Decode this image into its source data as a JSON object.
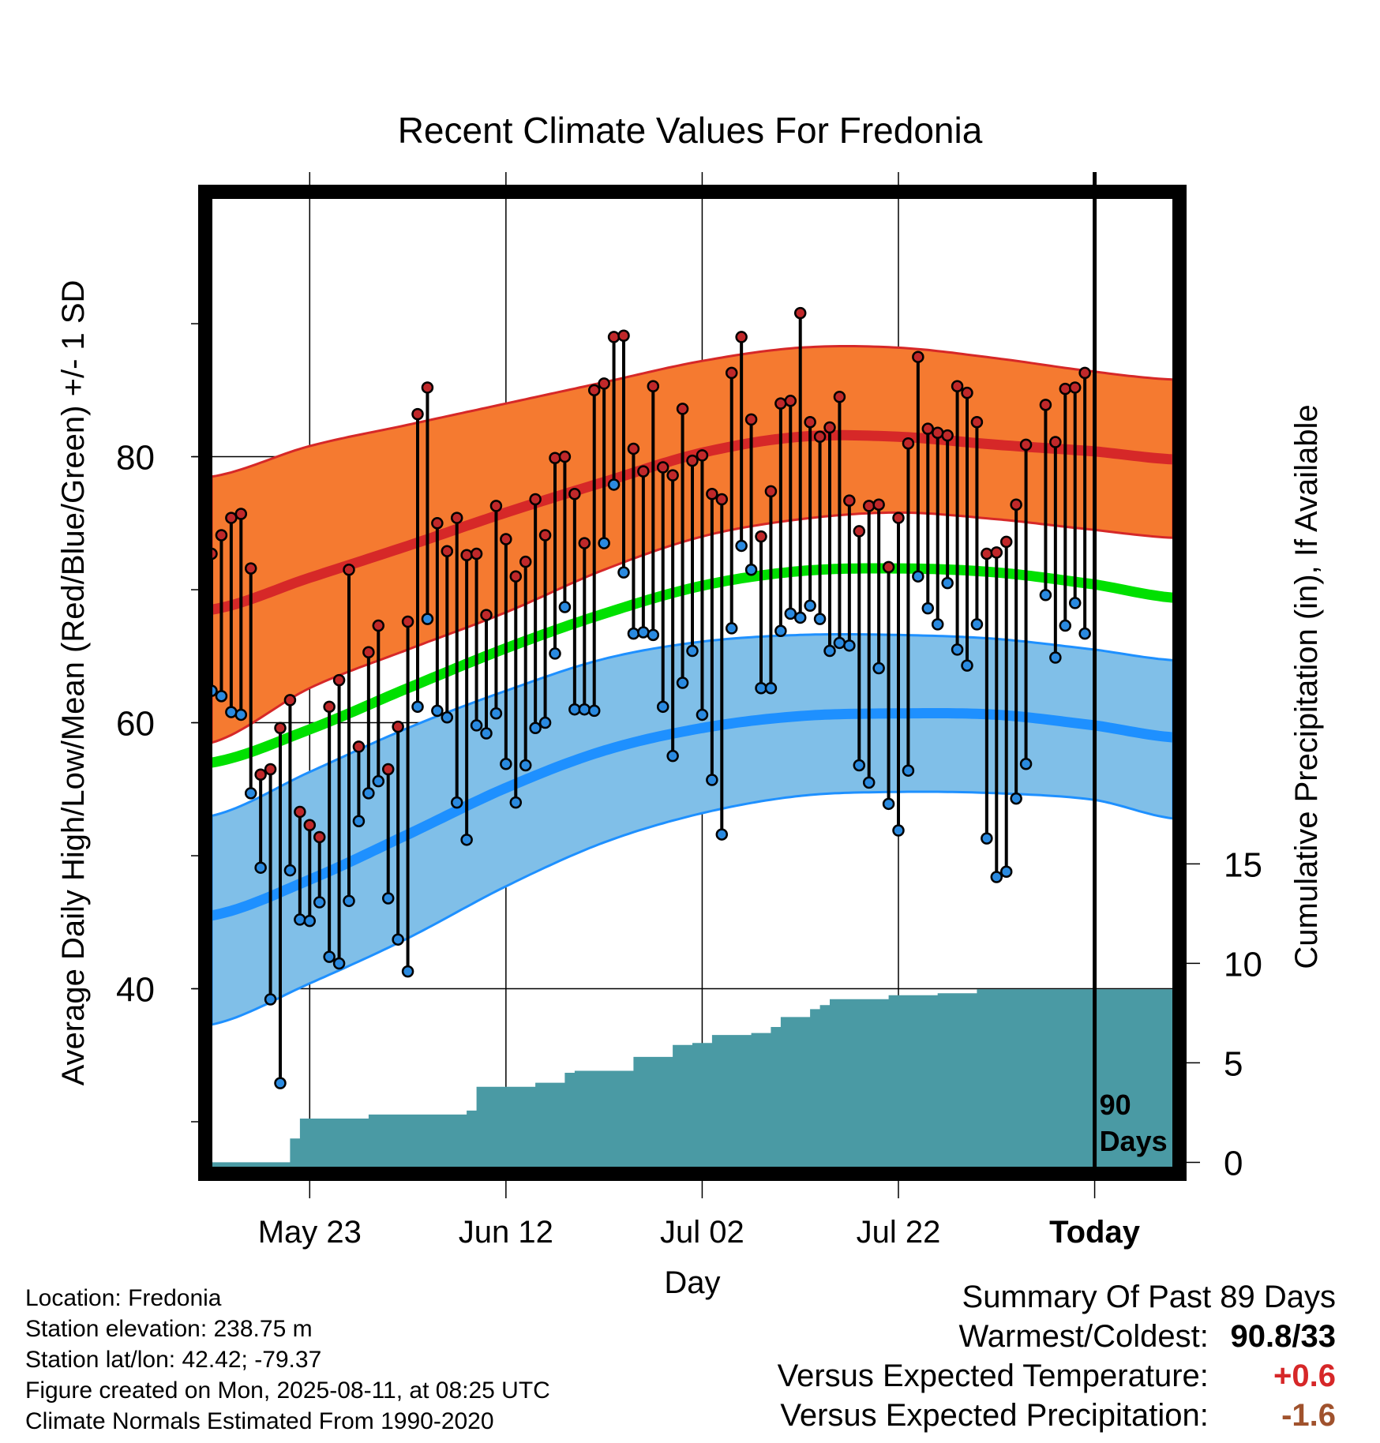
{
  "title": "Recent Climate Values For Fredonia",
  "chart_data": {
    "type": "line",
    "title": "Recent Climate Values For Fredonia",
    "xlabel": "Day",
    "ylabel": "Average Daily High/Low/Mean (Red/Blue/Green) +/- 1 SD",
    "y2label": "Cumulative Precipitation (in), If Available",
    "xlim": [
      "2025-05-13",
      "2025-08-19"
    ],
    "ylim": [
      26.5,
      99.5
    ],
    "y2lim": [
      -0.3,
      48.5
    ],
    "x_ticks": [
      "May 23",
      "Jun 12",
      "Jul 02",
      "Jul 22",
      "Today"
    ],
    "x_tick_dates": [
      "2025-05-23",
      "2025-06-12",
      "2025-07-02",
      "2025-07-22",
      "2025-08-11"
    ],
    "y_ticks": [
      40,
      60,
      80
    ],
    "y2_ticks": [
      0,
      5,
      10,
      15
    ],
    "grid": true,
    "today_marker_label": "90 Days",
    "normal_days": [
      "2025-05-13",
      "2025-05-23",
      "2025-06-02",
      "2025-06-12",
      "2025-06-22",
      "2025-07-02",
      "2025-07-12",
      "2025-07-22",
      "2025-08-01",
      "2025-08-11",
      "2025-08-19"
    ],
    "normal_high": [
      68.5,
      70.9,
      73.3,
      75.8,
      78.1,
      80.3,
      81.5,
      81.5,
      80.9,
      80.4,
      79.8
    ],
    "normal_high_upper": [
      78.5,
      80.8,
      82.4,
      84.0,
      85.6,
      87.2,
      88.2,
      88.2,
      87.4,
      86.4,
      85.8
    ],
    "normal_high_lower": [
      58.5,
      62.6,
      65.5,
      68.3,
      71.5,
      74.0,
      75.3,
      75.8,
      75.3,
      74.5,
      73.9
    ],
    "normal_mean": [
      57.0,
      59.5,
      62.6,
      65.6,
      68.2,
      70.3,
      71.4,
      71.6,
      71.3,
      70.4,
      69.4
    ],
    "normal_low": [
      45.5,
      48.2,
      51.6,
      55.1,
      57.9,
      59.6,
      60.5,
      60.7,
      60.6,
      59.8,
      58.9
    ],
    "normal_low_upper": [
      53.0,
      56.3,
      59.6,
      62.4,
      64.8,
      66.1,
      66.6,
      66.6,
      66.3,
      65.5,
      64.7
    ],
    "normal_low_lower": [
      37.3,
      40.4,
      43.8,
      47.7,
      51.0,
      53.2,
      54.5,
      54.8,
      54.7,
      54.2,
      52.8
    ],
    "series": [
      {
        "name": "High",
        "dates_start": "2025-05-13",
        "values": [
          72.7,
          74.1,
          75.4,
          75.7,
          71.6,
          56.1,
          56.5,
          59.6,
          61.7,
          53.3,
          52.3,
          51.4,
          61.2,
          63.2,
          71.5,
          58.2,
          65.3,
          67.3,
          56.5,
          59.7,
          67.6,
          83.2,
          85.2,
          75.0,
          72.9,
          75.4,
          72.6,
          72.7,
          68.1,
          76.3,
          73.8,
          71.0,
          72.1,
          76.8,
          74.1,
          79.9,
          80.0,
          77.2,
          73.5,
          85.0,
          85.5,
          89.0,
          89.1,
          80.6,
          78.9,
          85.3,
          79.2,
          78.6,
          83.6,
          79.7,
          80.1,
          77.2,
          76.8,
          86.3,
          89.0,
          82.8,
          74.0,
          77.4,
          84.0,
          84.2,
          90.8,
          82.6,
          81.5,
          82.2,
          84.5,
          76.7,
          74.4,
          76.3,
          76.4,
          71.7,
          75.4,
          81.0,
          87.5,
          82.1,
          81.8,
          81.6,
          85.3,
          84.8,
          82.6,
          72.7,
          72.8,
          73.6,
          76.4,
          80.9,
          null,
          83.9,
          81.1,
          85.1,
          85.2,
          86.3
        ]
      },
      {
        "name": "Low",
        "dates_start": "2025-05-13",
        "values": [
          62.4,
          62.0,
          60.8,
          60.6,
          54.7,
          49.1,
          39.2,
          32.9,
          48.9,
          45.2,
          45.1,
          46.5,
          42.4,
          41.9,
          46.6,
          52.6,
          54.7,
          55.6,
          46.8,
          43.7,
          41.3,
          61.2,
          67.8,
          60.9,
          60.4,
          54.0,
          51.2,
          59.8,
          59.2,
          60.7,
          56.9,
          54.0,
          56.8,
          59.6,
          60.0,
          65.2,
          68.7,
          61.0,
          61.0,
          60.9,
          73.5,
          77.9,
          71.3,
          66.7,
          66.8,
          66.6,
          61.2,
          57.5,
          63.0,
          65.4,
          60.6,
          55.7,
          51.6,
          67.1,
          73.3,
          71.5,
          62.6,
          62.6,
          66.9,
          68.2,
          67.9,
          68.8,
          67.8,
          65.4,
          66.0,
          65.8,
          56.8,
          55.5,
          64.1,
          53.9,
          51.9,
          56.4,
          71.0,
          68.6,
          67.4,
          70.5,
          65.5,
          64.3,
          67.4,
          51.3,
          48.4,
          48.8,
          54.3,
          56.9,
          null,
          69.6,
          64.9,
          67.3,
          69.0,
          66.7
        ]
      },
      {
        "name": "Cumulative Precipitation",
        "days": [
          "2025-05-13",
          "2025-05-20",
          "2025-05-21",
          "2025-05-22",
          "2025-05-26",
          "2025-05-29",
          "2025-06-08",
          "2025-06-09",
          "2025-06-15",
          "2025-06-18",
          "2025-06-19",
          "2025-06-25",
          "2025-06-29",
          "2025-07-01",
          "2025-07-03",
          "2025-07-07",
          "2025-07-09",
          "2025-07-10",
          "2025-07-13",
          "2025-07-14",
          "2025-07-15",
          "2025-07-20",
          "2025-07-21",
          "2025-07-25",
          "2025-07-26",
          "2025-07-29",
          "2025-07-30",
          "2025-08-19"
        ],
        "values": [
          0,
          0,
          1.2,
          2.2,
          2.2,
          2.4,
          2.6,
          3.8,
          4.0,
          4.5,
          4.6,
          5.3,
          5.9,
          6.0,
          6.4,
          6.5,
          6.8,
          7.3,
          7.7,
          7.9,
          8.2,
          8.2,
          8.4,
          8.4,
          8.5,
          8.5,
          8.7,
          8.7
        ]
      }
    ]
  },
  "summary": {
    "heading": "Summary Of Past 89 Days",
    "rows": [
      {
        "label": "Warmest/Coldest:",
        "value": "90.8/33",
        "color": "#000000"
      },
      {
        "label": "Versus Expected Temperature:",
        "value": "+0.6",
        "color": "#d62728"
      },
      {
        "label": "Versus Expected Precipitation:",
        "value": "-1.6",
        "color": "#a0522d"
      }
    ]
  },
  "metadata": [
    "Location: Fredonia",
    "Station elevation: 238.75 m",
    "Station lat/lon: 42.42; -79.37",
    "Figure created on Mon, 2025-08-11, at 08:25 UTC",
    "Climate Normals Estimated From 1990-2020"
  ],
  "colors": {
    "high_band": "#f57a30",
    "high_line": "#d62828",
    "mean_line": "#00e000",
    "low_band": "#80bfe8",
    "low_line": "#1e90ff",
    "precip": "#4a9aa4",
    "high_dot": "#c0282a",
    "low_dot": "#2a8ae0"
  }
}
